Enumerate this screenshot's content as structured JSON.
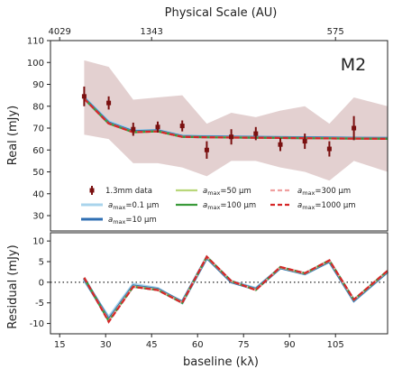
{
  "chart_data": [
    {
      "type": "line",
      "panel": "main",
      "panel_label": "M2",
      "ylabel": "Real (mJy)",
      "top_xlabel": "Physical Scale (AU)",
      "top_tick_labels": [
        "4029",
        "1343",
        "575"
      ],
      "top_tick_baselines": [
        15,
        45,
        105
      ],
      "xlim": [
        12,
        122
      ],
      "ylim": [
        23,
        110
      ],
      "y_ticks": [
        30,
        40,
        50,
        60,
        70,
        80,
        90,
        100,
        110
      ],
      "grid": false,
      "legend_placement": "bottom",
      "envelope": {
        "color": "#c8a2a2",
        "x": [
          23,
          31,
          39,
          47,
          55,
          63,
          71,
          79,
          87,
          95,
          103,
          111,
          122
        ],
        "upper": [
          101,
          98,
          83,
          84,
          85,
          72,
          77,
          75,
          78,
          80,
          72,
          84,
          80
        ],
        "lower": [
          67,
          65,
          54,
          54,
          52,
          48,
          55,
          55,
          52,
          50,
          46,
          55,
          50
        ]
      },
      "data": {
        "name": "1.3mm data",
        "color": "#7a1010",
        "x": [
          23,
          31,
          39,
          47,
          55,
          63,
          71,
          79,
          87,
          95,
          103,
          111
        ],
        "y": [
          84.5,
          81.5,
          69.5,
          70.5,
          71.0,
          60.0,
          66.0,
          67.5,
          62.5,
          64.0,
          60.5,
          70.0
        ],
        "err": [
          4.5,
          3.0,
          3.0,
          2.5,
          2.5,
          4.0,
          3.5,
          3.0,
          3.0,
          3.5,
          3.5,
          5.5
        ]
      },
      "x": [
        23,
        31,
        39,
        47,
        55,
        63,
        71,
        79,
        87,
        95,
        103,
        111,
        122
      ],
      "series": [
        {
          "name": "a_max=0.1 μm",
          "legend_label": "=0.1 μm",
          "color": "#a9d4ec",
          "dash": "solid",
          "values": [
            84.0,
            73.0,
            68.8,
            69.0,
            66.4,
            66.2,
            66.0,
            65.9,
            65.8,
            65.7,
            65.6,
            65.5,
            65.4
          ]
        },
        {
          "name": "a_max=10 μm",
          "legend_label": "=10 μm",
          "color": "#2f6fb3",
          "dash": "solid",
          "values": [
            83.6,
            72.4,
            68.4,
            68.8,
            66.2,
            66.0,
            65.9,
            65.8,
            65.7,
            65.6,
            65.5,
            65.4,
            65.3
          ]
        },
        {
          "name": "a_max=50 μm",
          "legend_label": "=50 μm",
          "color": "#b9d77a",
          "dash": "solid",
          "values": [
            83.5,
            72.2,
            68.2,
            68.6,
            66.1,
            65.9,
            65.8,
            65.7,
            65.6,
            65.5,
            65.4,
            65.3,
            65.2
          ]
        },
        {
          "name": "a_max=100 μm",
          "legend_label": "=100 μm",
          "color": "#3a9a3a",
          "dash": "solid",
          "values": [
            83.4,
            72.1,
            68.1,
            68.5,
            66.0,
            65.8,
            65.7,
            65.6,
            65.5,
            65.4,
            65.3,
            65.2,
            65.1
          ]
        },
        {
          "name": "a_max=300 μm",
          "legend_label": "=300 μm",
          "color": "#f0a0a0",
          "dash": "dashed",
          "values": [
            83.4,
            72.1,
            68.1,
            68.5,
            66.0,
            65.8,
            65.7,
            65.6,
            65.5,
            65.4,
            65.3,
            65.2,
            65.1
          ]
        },
        {
          "name": "a_max=1000 μm",
          "legend_label": "=1000 μm",
          "color": "#d62728",
          "dash": "dashed",
          "values": [
            83.4,
            72.1,
            68.1,
            68.5,
            66.0,
            65.8,
            65.7,
            65.6,
            65.5,
            65.4,
            65.3,
            65.2,
            65.1
          ]
        }
      ]
    },
    {
      "type": "line",
      "panel": "residual",
      "ylabel": "Residual (mJy)",
      "xlabel": "baseline (kλ)",
      "xlim": [
        12,
        122
      ],
      "ylim": [
        -12.5,
        12
      ],
      "x_ticks": [
        15,
        30,
        45,
        60,
        75,
        90,
        105
      ],
      "y_ticks": [
        -10,
        -5,
        0,
        5,
        10
      ],
      "zero_line": "dotted",
      "x": [
        23,
        31,
        39,
        47,
        55,
        63,
        71,
        79,
        87,
        95,
        103,
        111,
        122
      ],
      "series": [
        {
          "name": "a_max=0.1 μm",
          "color": "#a9d4ec",
          "dash": "solid",
          "values": [
            0.5,
            -8.5,
            -0.5,
            -1.5,
            -5.0,
            6.0,
            0.2,
            -1.5,
            3.5,
            2.0,
            5.0,
            -4.5,
            2.5
          ]
        },
        {
          "name": "a_max=10 μm",
          "color": "#2f6fb3",
          "dash": "solid",
          "values": [
            0.9,
            -9.1,
            -0.9,
            -1.7,
            -4.8,
            6.0,
            0.1,
            -1.7,
            3.5,
            2.1,
            5.1,
            -4.4,
            2.6
          ]
        },
        {
          "name": "a_max=50 μm",
          "color": "#b9d77a",
          "dash": "solid",
          "values": [
            1.0,
            -9.3,
            -1.0,
            -1.8,
            -4.9,
            6.1,
            0.2,
            -1.8,
            3.6,
            2.1,
            5.2,
            -4.3,
            2.7
          ]
        },
        {
          "name": "a_max=100 μm",
          "color": "#3a9a3a",
          "dash": "solid",
          "values": [
            1.1,
            -9.4,
            -1.1,
            -1.9,
            -5.0,
            6.2,
            0.3,
            -1.9,
            3.7,
            2.2,
            5.3,
            -4.2,
            2.8
          ]
        },
        {
          "name": "a_max=300 μm",
          "color": "#f0a0a0",
          "dash": "dashed",
          "values": [
            1.1,
            -9.4,
            -1.1,
            -1.9,
            -5.0,
            6.2,
            0.3,
            -1.9,
            3.7,
            2.2,
            5.3,
            -4.2,
            2.8
          ]
        },
        {
          "name": "a_max=1000 μm",
          "color": "#d62728",
          "dash": "dashed",
          "values": [
            1.1,
            -9.6,
            -1.1,
            -1.9,
            -5.0,
            6.2,
            0.3,
            -1.9,
            3.7,
            2.2,
            5.3,
            -4.2,
            2.8
          ]
        }
      ]
    }
  ]
}
